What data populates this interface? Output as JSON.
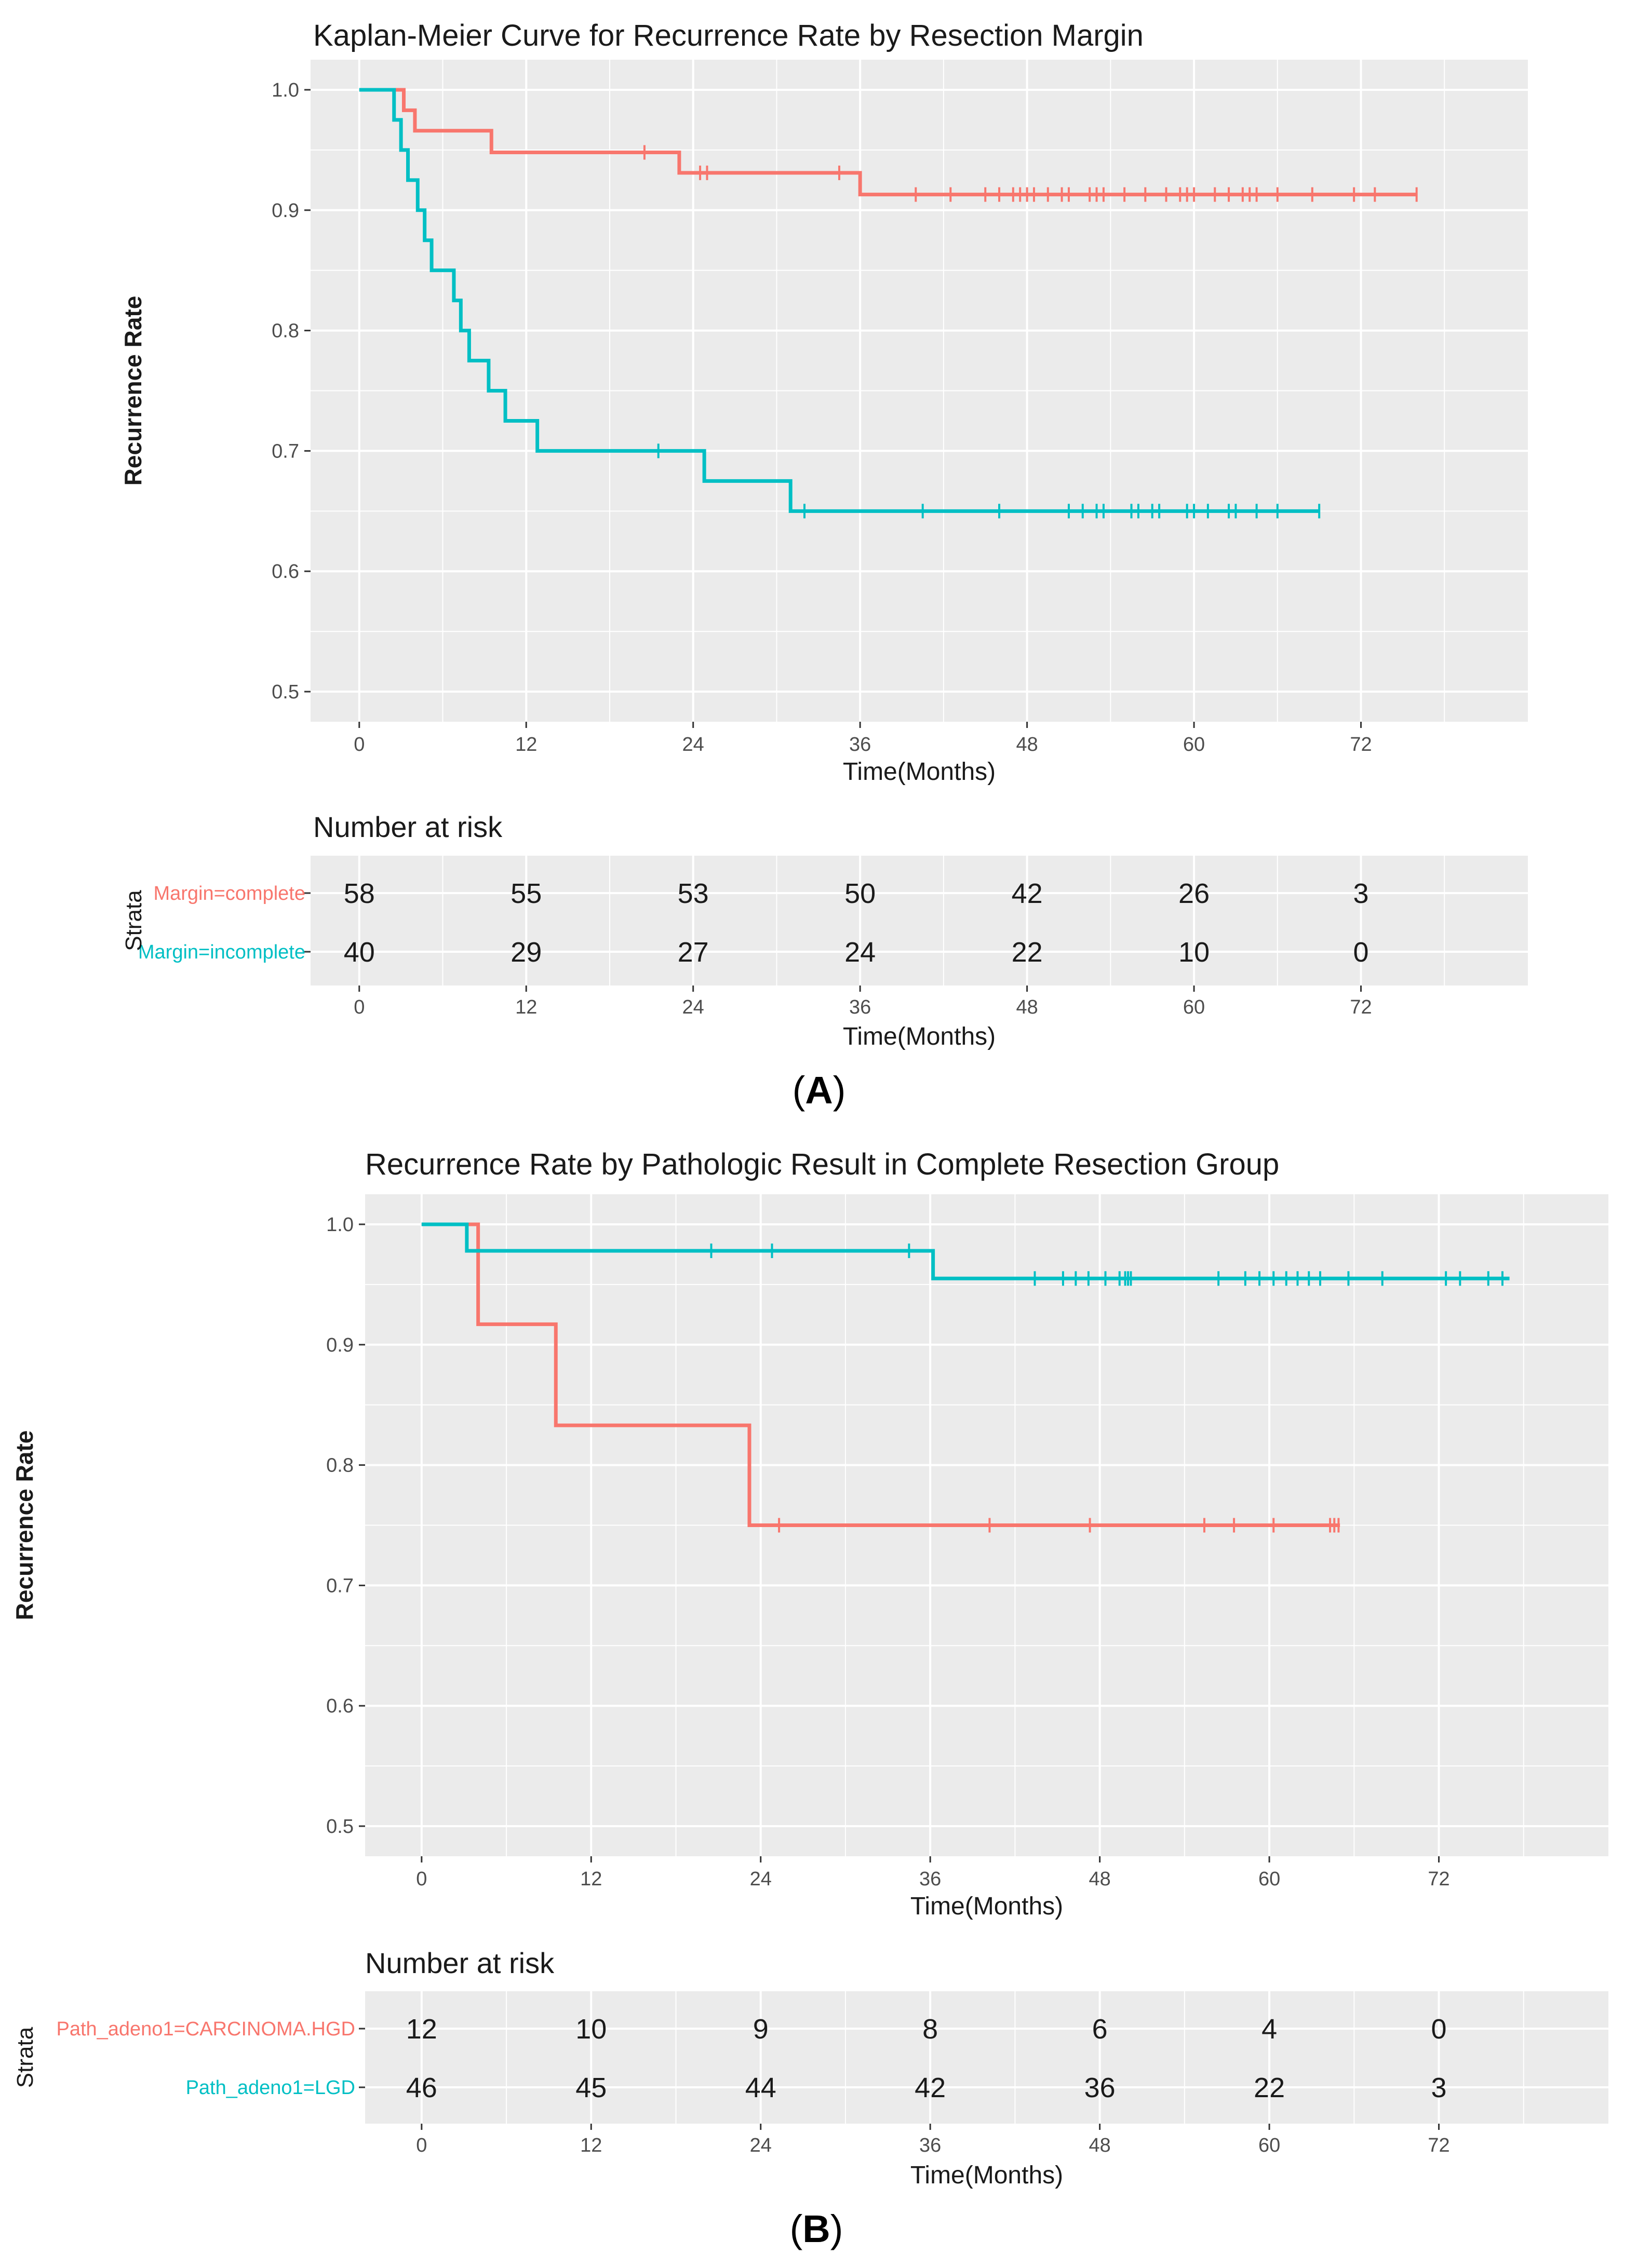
{
  "colors": {
    "red": "#F8766D",
    "cyan": "#00BFC4",
    "panel_bg": "#EBEBEB",
    "grid": "#FFFFFF"
  },
  "chart_data": [
    {
      "type": "line",
      "subtype": "kaplan-meier step",
      "title": "Kaplan-Meier Curve for Recurrence Rate by Resection Margin",
      "xlabel": "Time(Months)",
      "ylabel": "Recurrence Rate",
      "xlim": [
        -3.5,
        84
      ],
      "ylim": [
        0.475,
        1.025
      ],
      "xticks": [
        0,
        12,
        24,
        36,
        48,
        60,
        72
      ],
      "yticks": [
        0.5,
        0.6,
        0.7,
        0.8,
        0.9,
        1.0
      ],
      "ytick_labels": [
        "0.5",
        "0.6",
        "0.7",
        "0.8",
        "0.9",
        "1.0"
      ],
      "grid": true,
      "series": [
        {
          "name": "Margin=complete",
          "color": "#F8766D",
          "steps": [
            [
              0,
              1.0
            ],
            [
              3.2,
              0.983
            ],
            [
              4.0,
              0.966
            ],
            [
              9.5,
              0.948
            ],
            [
              23.0,
              0.931
            ],
            [
              36.0,
              0.913
            ]
          ],
          "end": 76,
          "censor": [
            20.5,
            24.5,
            25.0,
            34.5,
            40.0,
            42.5,
            45.0,
            46.0,
            47.0,
            47.5,
            48.0,
            48.5,
            49.5,
            50.5,
            51.0,
            52.5,
            53.0,
            53.5,
            55.0,
            56.5,
            58.0,
            59.0,
            59.5,
            60.0,
            61.5,
            62.5,
            63.5,
            64.0,
            64.5,
            66.0,
            68.5,
            71.5,
            73.0,
            76.0
          ]
        },
        {
          "name": "Margin=incomplete",
          "color": "#00BFC4",
          "steps": [
            [
              0,
              1.0
            ],
            [
              2.5,
              0.975
            ],
            [
              3.0,
              0.95
            ],
            [
              3.5,
              0.925
            ],
            [
              4.2,
              0.9
            ],
            [
              4.7,
              0.875
            ],
            [
              5.2,
              0.85
            ],
            [
              6.8,
              0.825
            ],
            [
              7.3,
              0.8
            ],
            [
              7.9,
              0.775
            ],
            [
              9.3,
              0.75
            ],
            [
              10.5,
              0.725
            ],
            [
              12.8,
              0.7
            ],
            [
              24.8,
              0.675
            ],
            [
              31.0,
              0.65
            ]
          ],
          "end": 69,
          "censor": [
            21.5,
            32.0,
            40.5,
            46.0,
            51.0,
            52.0,
            53.0,
            53.5,
            55.5,
            56.0,
            57.0,
            57.5,
            59.5,
            60.0,
            61.0,
            62.5,
            63.0,
            64.5,
            66.0,
            69.0
          ]
        }
      ],
      "risk_table": {
        "title": "Number at risk",
        "axis_label": "Strata",
        "xlabel": "Time(Months)",
        "rows": [
          {
            "label": "Margin=complete",
            "color": "#F8766D",
            "values": [
              "58",
              "55",
              "53",
              "50",
              "42",
              "26",
              "3"
            ]
          },
          {
            "label": "Margin=incomplete",
            "color": "#00BFC4",
            "values": [
              "40",
              "29",
              "27",
              "24",
              "22",
              "10",
              "0"
            ]
          }
        ]
      },
      "panel_label": {
        "open": "(",
        "letter": "A",
        "close": ")"
      }
    },
    {
      "type": "line",
      "subtype": "kaplan-meier step",
      "title": "Recurrence Rate by Pathologic Result in Complete Resection Group",
      "xlabel": "Time(Months)",
      "ylabel": "Recurrence Rate",
      "xlim": [
        -4,
        84
      ],
      "ylim": [
        0.475,
        1.025
      ],
      "xticks": [
        0,
        12,
        24,
        36,
        48,
        60,
        72
      ],
      "yticks": [
        0.5,
        0.6,
        0.7,
        0.8,
        0.9,
        1.0
      ],
      "ytick_labels": [
        "0.5",
        "0.6",
        "0.7",
        "0.8",
        "0.9",
        "1.0"
      ],
      "grid": true,
      "series": [
        {
          "name": "Path_adeno1=CARCINOMA.HGD",
          "color": "#F8766D",
          "steps": [
            [
              0,
              1.0
            ],
            [
              4.0,
              0.917
            ],
            [
              9.5,
              0.833
            ],
            [
              23.2,
              0.75
            ]
          ],
          "end": 65,
          "censor": [
            25.3,
            40.2,
            47.3,
            55.4,
            57.5,
            60.3,
            64.3,
            64.6,
            64.9
          ]
        },
        {
          "name": "Path_adeno1=LGD",
          "color": "#00BFC4",
          "steps": [
            [
              0,
              1.0
            ],
            [
              3.2,
              0.978
            ],
            [
              36.2,
              0.955
            ]
          ],
          "end": 77,
          "censor": [
            20.5,
            24.8,
            34.5,
            43.4,
            45.4,
            46.3,
            47.2,
            48.4,
            49.4,
            49.8,
            50.0,
            50.2,
            56.4,
            58.3,
            59.3,
            60.3,
            61.2,
            62.0,
            62.8,
            63.6,
            65.6,
            68.0,
            72.5,
            73.5,
            75.5,
            76.5
          ]
        }
      ],
      "risk_table": {
        "title": "Number at risk",
        "axis_label": "Strata",
        "xlabel": "Time(Months)",
        "rows": [
          {
            "label": "Path_adeno1=CARCINOMA.HGD",
            "color": "#F8766D",
            "values": [
              "12",
              "10",
              "9",
              "8",
              "6",
              "4",
              "0"
            ]
          },
          {
            "label": "Path_adeno1=LGD",
            "color": "#00BFC4",
            "values": [
              "46",
              "45",
              "44",
              "42",
              "36",
              "22",
              "3"
            ]
          }
        ]
      },
      "panel_label": {
        "open": "(",
        "letter": "B",
        "close": ")"
      }
    }
  ]
}
